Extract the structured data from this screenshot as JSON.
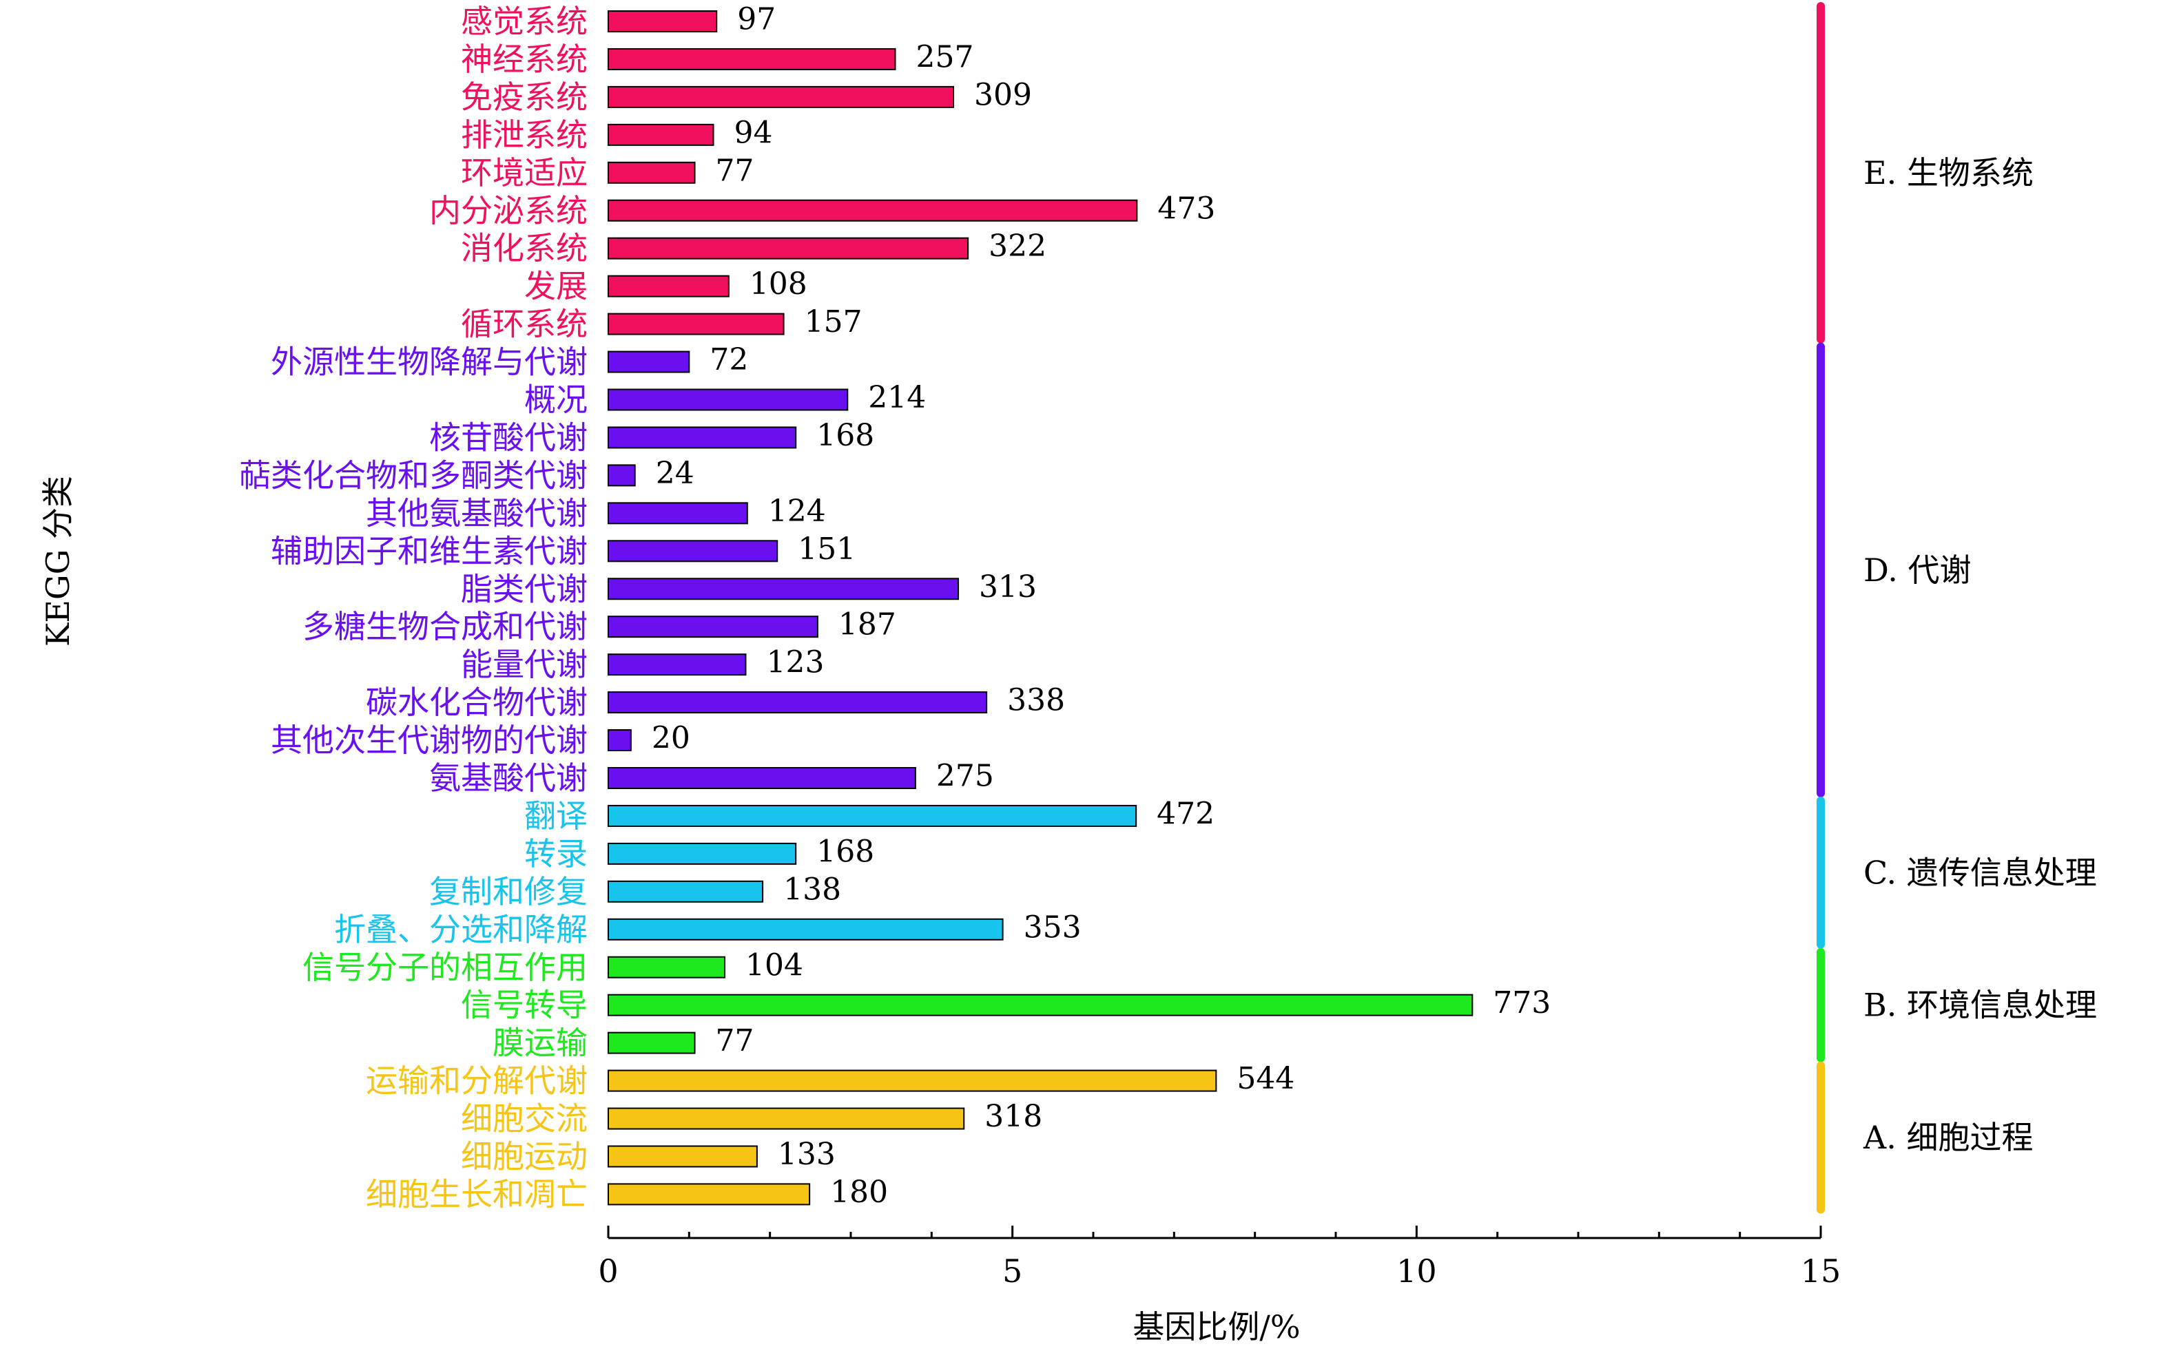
{
  "chart_data": {
    "type": "bar",
    "orientation": "horizontal",
    "title": "",
    "xlabel": "基因比例/%",
    "ylabel": "KEGG 分类",
    "xlim": [
      0,
      15
    ],
    "xticks": [
      "0",
      "5",
      "10",
      "15"
    ],
    "grid": false,
    "groups": [
      {
        "name": "E. 生物系统",
        "color": "#f0105f",
        "items": [
          {
            "label": "感觉系统",
            "count": 97,
            "percent": 1.34
          },
          {
            "label": "神经系统",
            "count": 257,
            "percent": 3.55
          },
          {
            "label": "免疫系统",
            "count": 309,
            "percent": 4.27
          },
          {
            "label": "排泄系统",
            "count": 94,
            "percent": 1.3
          },
          {
            "label": "环境适应",
            "count": 77,
            "percent": 1.07
          },
          {
            "label": "内分泌系统",
            "count": 473,
            "percent": 6.54
          },
          {
            "label": "消化系统",
            "count": 322,
            "percent": 4.45
          },
          {
            "label": "发展",
            "count": 108,
            "percent": 1.49
          },
          {
            "label": "循环系统",
            "count": 157,
            "percent": 2.17
          }
        ]
      },
      {
        "name": "D. 代谢",
        "color": "#6a0ff0",
        "items": [
          {
            "label": "外源性生物降解与代谢",
            "count": 72,
            "percent": 1.0
          },
          {
            "label": "概况",
            "count": 214,
            "percent": 2.96
          },
          {
            "label": "核苷酸代谢",
            "count": 168,
            "percent": 2.32
          },
          {
            "label": "萜类化合物和多酮类代谢",
            "count": 24,
            "percent": 0.33
          },
          {
            "label": "其他氨基酸代谢",
            "count": 124,
            "percent": 1.72
          },
          {
            "label": "辅助因子和维生素代谢",
            "count": 151,
            "percent": 2.09
          },
          {
            "label": "脂类代谢",
            "count": 313,
            "percent": 4.33
          },
          {
            "label": "多糖生物合成和代谢",
            "count": 187,
            "percent": 2.59
          },
          {
            "label": "能量代谢",
            "count": 123,
            "percent": 1.7
          },
          {
            "label": "碳水化合物代谢",
            "count": 338,
            "percent": 4.68
          },
          {
            "label": "其他次生代谢物的代谢",
            "count": 20,
            "percent": 0.28
          },
          {
            "label": "氨基酸代谢",
            "count": 275,
            "percent": 3.8
          }
        ]
      },
      {
        "name": "C. 遗传信息处理",
        "color": "#18c4ec",
        "items": [
          {
            "label": "翻译",
            "count": 472,
            "percent": 6.53
          },
          {
            "label": "转录",
            "count": 168,
            "percent": 2.32
          },
          {
            "label": "复制和修复",
            "count": 138,
            "percent": 1.91
          },
          {
            "label": "折叠、分选和降解",
            "count": 353,
            "percent": 4.88
          }
        ]
      },
      {
        "name": "B. 环境信息处理",
        "color": "#1ee81e",
        "items": [
          {
            "label": "信号分子的相互作用",
            "count": 104,
            "percent": 1.44
          },
          {
            "label": "信号转导",
            "count": 773,
            "percent": 10.69
          },
          {
            "label": "膜运输",
            "count": 77,
            "percent": 1.07
          }
        ]
      },
      {
        "name": "A. 细胞过程",
        "color": "#f5c414",
        "items": [
          {
            "label": "运输和分解代谢",
            "count": 544,
            "percent": 7.52
          },
          {
            "label": "细胞交流",
            "count": 318,
            "percent": 4.4
          },
          {
            "label": "细胞运动",
            "count": 133,
            "percent": 1.84
          },
          {
            "label": "细胞生长和凋亡",
            "count": 180,
            "percent": 2.49
          }
        ]
      }
    ]
  }
}
